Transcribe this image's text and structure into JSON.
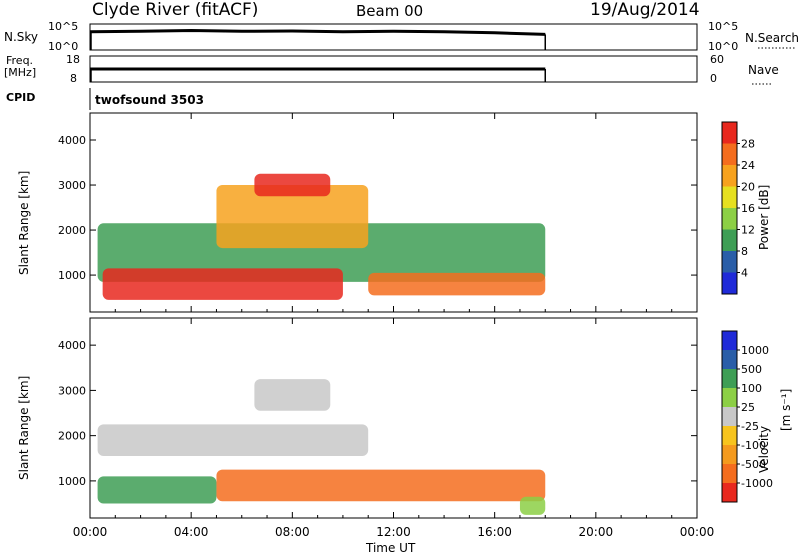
{
  "header": {
    "station": "Clyde River (fitACF)",
    "beam": "Beam 00",
    "date": "19/Aug/2014"
  },
  "chart_data": [
    {
      "type": "line",
      "panel": "noise",
      "left_label": "N.Sky",
      "right_label": "N.Search",
      "left_ticks": [
        "10^5",
        "10^0"
      ],
      "right_ticks": [
        "10^5",
        "10^0"
      ],
      "x_range_hours": [
        0,
        24
      ],
      "series": [
        {
          "name": "N.Sky",
          "x_hours": [
            0.0,
            2.0,
            4.0,
            6.0,
            8.0,
            10.0,
            12.0,
            14.0,
            16.0,
            18.0
          ],
          "level_fraction": [
            0.7,
            0.72,
            0.75,
            0.72,
            0.73,
            0.7,
            0.72,
            0.7,
            0.66,
            0.6
          ]
        }
      ]
    },
    {
      "type": "line",
      "panel": "frequency",
      "left_label_line1": "Freq.",
      "left_label_line2": "[MHz]",
      "right_label": "Nave",
      "left_ticks": [
        "18",
        "8"
      ],
      "right_ticks": [
        "60",
        "0"
      ],
      "x_range_hours": [
        0,
        24
      ],
      "series": [
        {
          "name": "Freq.",
          "x_hours": [
            0.0,
            18.0
          ],
          "level_fraction": [
            0.5,
            0.5
          ]
        }
      ]
    },
    {
      "type": "table",
      "panel": "cpid",
      "label": "CPID",
      "program": "twofsound 3503"
    },
    {
      "type": "heatmap",
      "panel": "power",
      "ylabel": "Slant Range [km]",
      "xlabel": "",
      "y_ticks": [
        1000,
        2000,
        3000,
        4000
      ],
      "ylim": [
        180,
        4600
      ],
      "xlim": [
        0,
        24
      ],
      "colorbar": {
        "label": "Power [dB]",
        "ticks": [
          "28",
          "24",
          "20",
          "16",
          "12",
          "8",
          "4"
        ],
        "colors": [
          "#e8281e",
          "#f46d1e",
          "#f7a21e",
          "#e6e020",
          "#8ccf45",
          "#3e9e55",
          "#2a5ea8",
          "#1f2ad8"
        ]
      },
      "bands": [
        {
          "x_start": 0.3,
          "x_end": 18.0,
          "y_center": 1500,
          "height": 1300,
          "color": "#3e9e55"
        },
        {
          "x_start": 0.5,
          "x_end": 10.0,
          "y_center": 800,
          "height": 700,
          "color": "#e8281e"
        },
        {
          "x_start": 5.0,
          "x_end": 11.0,
          "y_center": 2300,
          "height": 1400,
          "color": "#f7a21e"
        },
        {
          "x_start": 11.0,
          "x_end": 18.0,
          "y_center": 800,
          "height": 500,
          "color": "#f46d1e"
        },
        {
          "x_start": 6.5,
          "x_end": 9.5,
          "y_center": 3000,
          "height": 500,
          "color": "#e8281e"
        }
      ]
    },
    {
      "type": "heatmap",
      "panel": "velocity",
      "ylabel": "Slant Range [km]",
      "xlabel": "Time UT",
      "y_ticks": [
        1000,
        2000,
        3000,
        4000
      ],
      "ylim": [
        180,
        4600
      ],
      "xlim": [
        0,
        24
      ],
      "x_tick_labels": [
        "00:00",
        "04:00",
        "08:00",
        "12:00",
        "16:00",
        "20:00",
        "00:00"
      ],
      "colorbar": {
        "label": "Velocity",
        "units": "[m s⁻¹]",
        "ticks": [
          "1000",
          "500",
          "100",
          "25",
          "-25",
          "-100",
          "-500",
          "-1000"
        ],
        "colors": [
          "#1f2ad8",
          "#2a5ea8",
          "#3e9e55",
          "#8ccf45",
          "#c8c8c8",
          "#f7c41e",
          "#f49a1e",
          "#f46d1e",
          "#e8281e"
        ]
      },
      "bands": [
        {
          "x_start": 0.3,
          "x_end": 11.0,
          "y_center": 1900,
          "height": 700,
          "color": "#c8c8c8"
        },
        {
          "x_start": 0.3,
          "x_end": 5.0,
          "y_center": 800,
          "height": 600,
          "color": "#3e9e55"
        },
        {
          "x_start": 5.0,
          "x_end": 18.0,
          "y_center": 900,
          "height": 700,
          "color": "#f46d1e"
        },
        {
          "x_start": 6.5,
          "x_end": 9.5,
          "y_center": 2900,
          "height": 700,
          "color": "#c8c8c8"
        },
        {
          "x_start": 17.0,
          "x_end": 18.0,
          "y_center": 450,
          "height": 400,
          "color": "#8ccf45"
        }
      ]
    }
  ]
}
